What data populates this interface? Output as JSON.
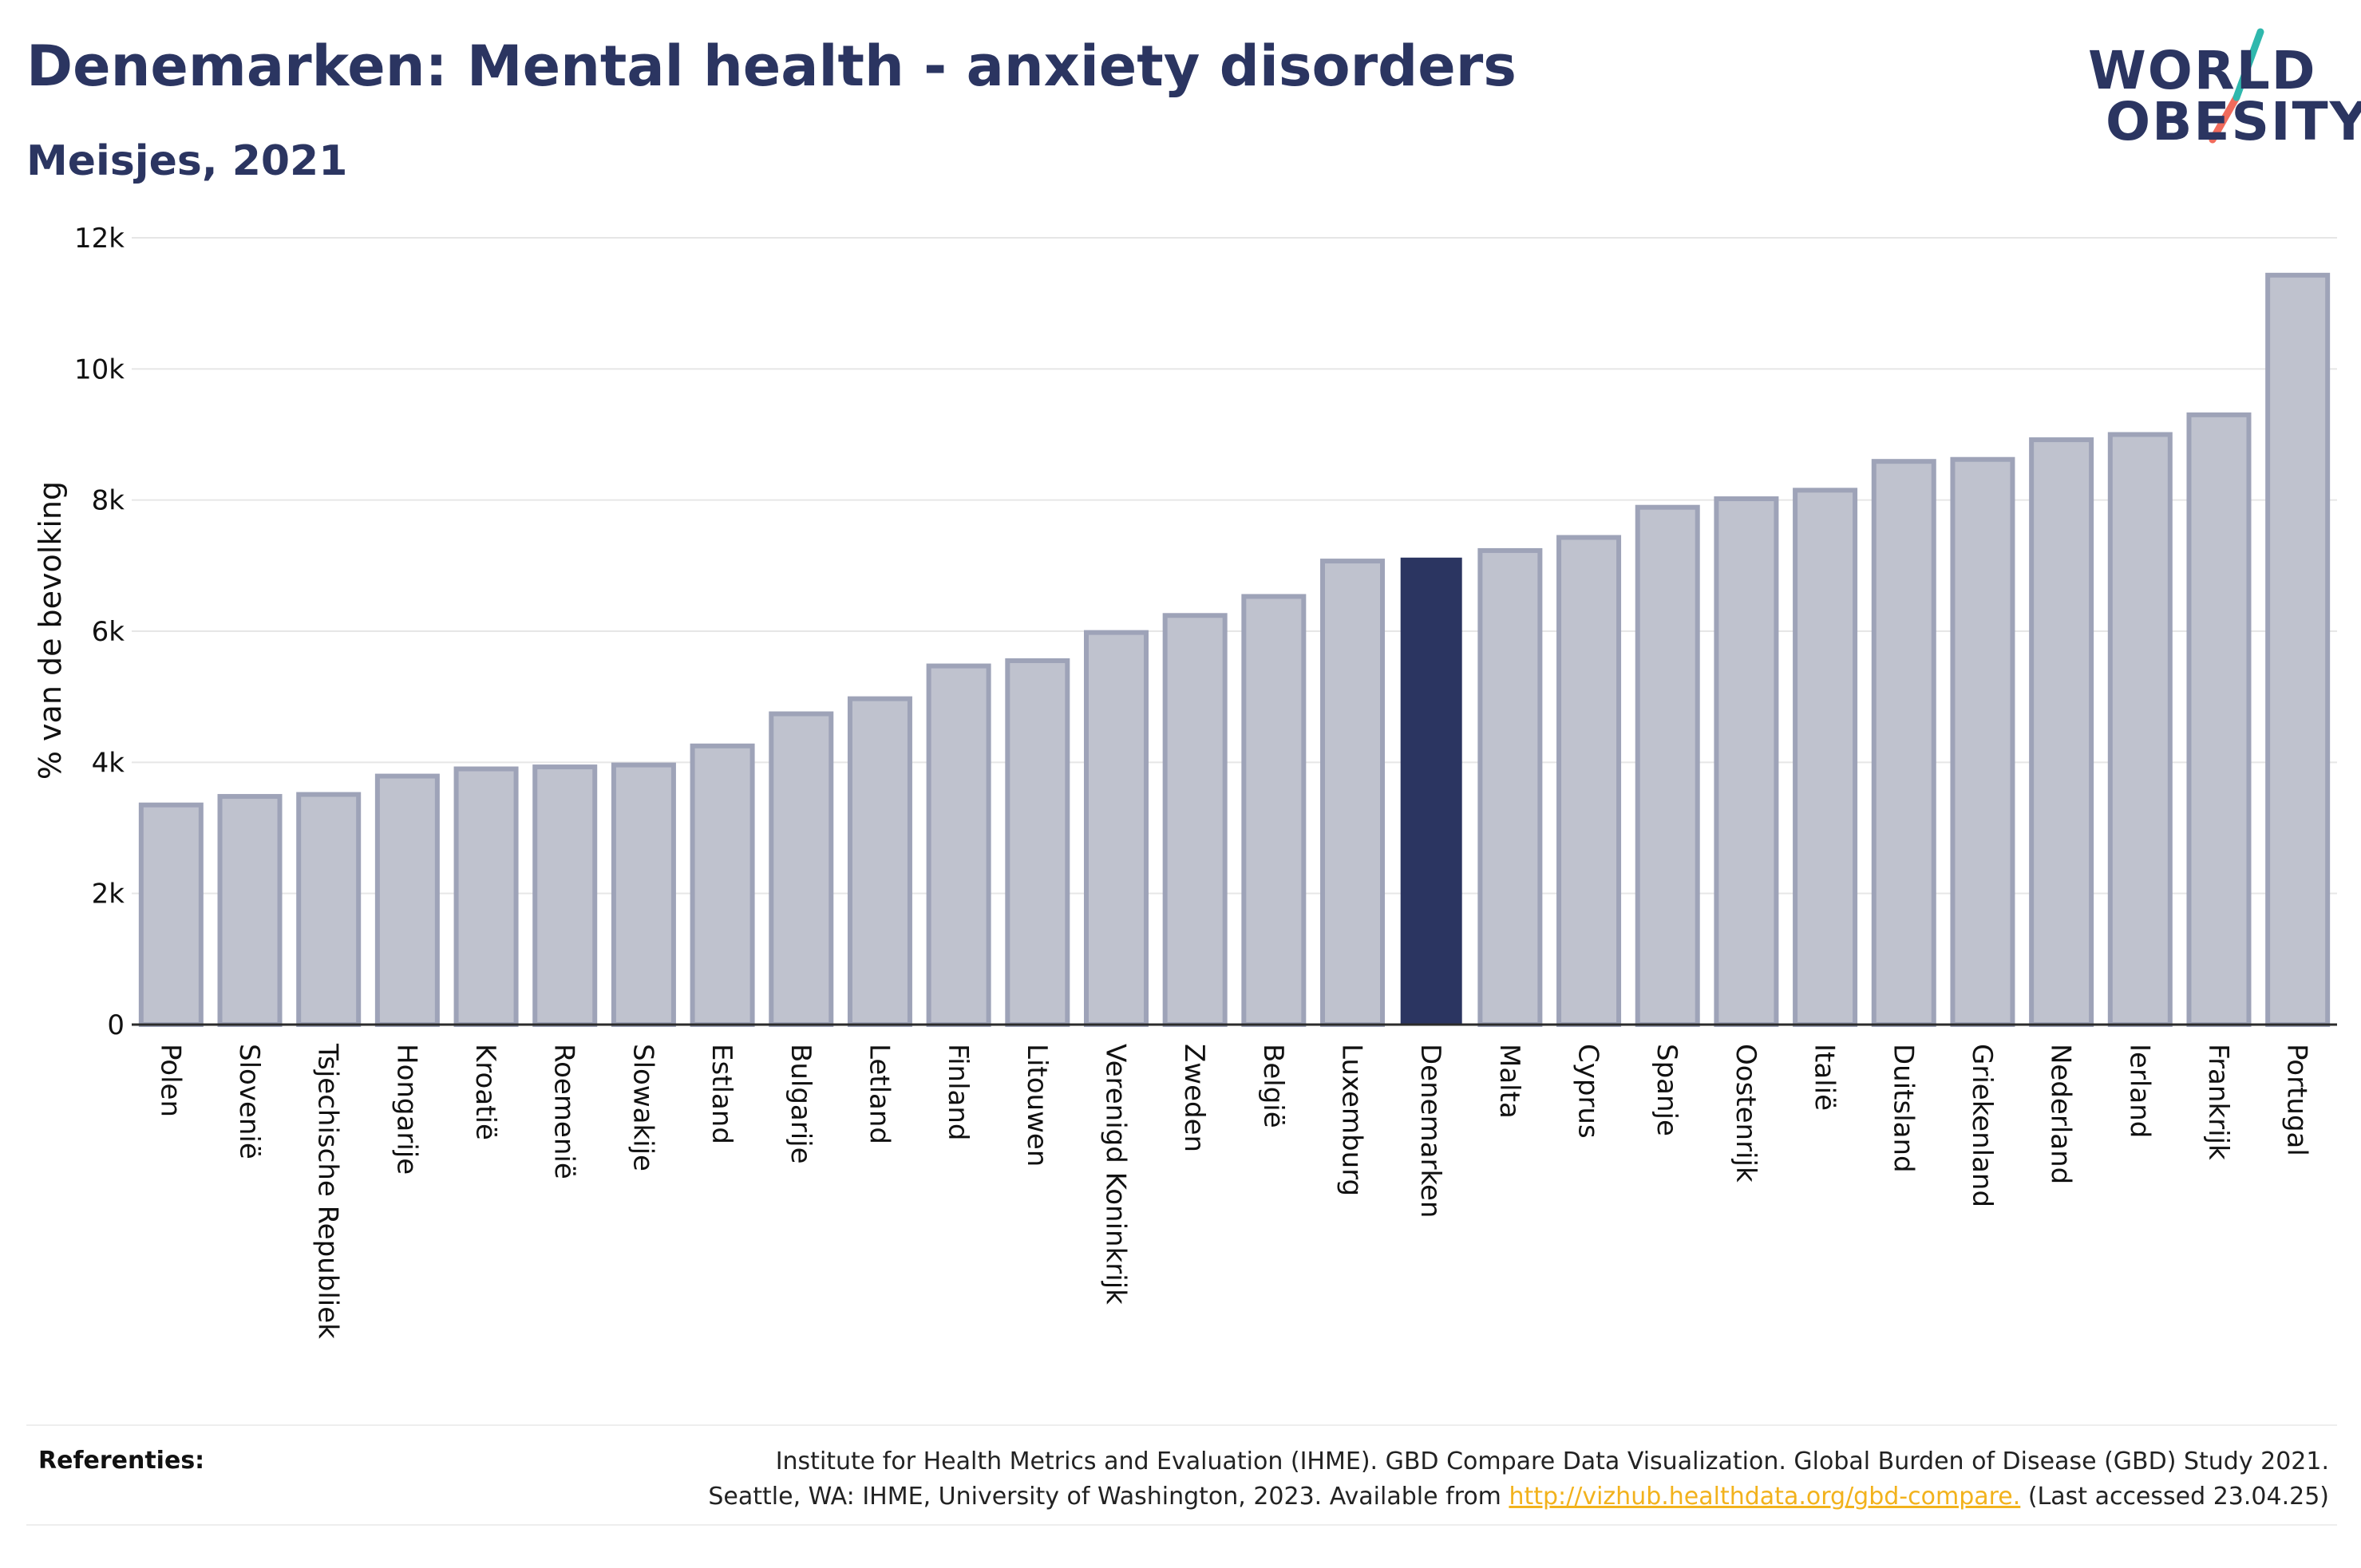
{
  "header": {
    "title": "Denemarken: Mental health - anxiety disorders",
    "subtitle": "Meisjes, 2021"
  },
  "logo": {
    "line1": "WORLD",
    "line2": "OBESITY",
    "colors": {
      "text": "#2b3561",
      "slash_top": "#2fb8ad",
      "slash_bottom": "#f06b5c"
    }
  },
  "chart_data": {
    "type": "bar",
    "ylabel": "% van de bevolking",
    "xlabel": "",
    "ylim": [
      0,
      12000
    ],
    "yticks": [
      0,
      2000,
      4000,
      6000,
      8000,
      10000,
      12000
    ],
    "ytick_labels": [
      "0",
      "2k",
      "4k",
      "6k",
      "8k",
      "10k",
      "12k"
    ],
    "grid": true,
    "highlight": "Denemarken",
    "colors": {
      "bar": "#bfc2ce",
      "bar_border": "#9ea3b8",
      "highlight": "#2b3561"
    },
    "categories": [
      "Polen",
      "Slovenië",
      "Tsjechische Republiek",
      "Hongarije",
      "Kroatië",
      "Roemenië",
      "Slowakije",
      "Estland",
      "Bulgarije",
      "Letland",
      "Finland",
      "Litouwen",
      "Verenigd Koninkrijk",
      "Zweden",
      "België",
      "Luxemburg",
      "Denemarken",
      "Malta",
      "Cyprus",
      "Spanje",
      "Oostenrijk",
      "Italië",
      "Duitsland",
      "Griekenland",
      "Nederland",
      "Ierland",
      "Frankrijk",
      "Portugal"
    ],
    "values": [
      3350,
      3480,
      3510,
      3790,
      3900,
      3930,
      3960,
      4250,
      4740,
      4970,
      5470,
      5550,
      5980,
      6240,
      6530,
      7070,
      7110,
      7230,
      7430,
      7890,
      8020,
      8150,
      8590,
      8620,
      8920,
      9000,
      9300,
      11430
    ]
  },
  "references": {
    "label": "Referenties:",
    "line1": "Institute for Health Metrics and Evaluation (IHME). GBD Compare Data Visualization. Global Burden of Disease (GBD) Study 2021.",
    "line2_prefix": "Seattle, WA: IHME, University of Washington, 2023. Available from ",
    "link": "http://vizhub.healthdata.org/gbd-compare.",
    "line2_suffix": " (Last accessed 23.04.25)"
  }
}
